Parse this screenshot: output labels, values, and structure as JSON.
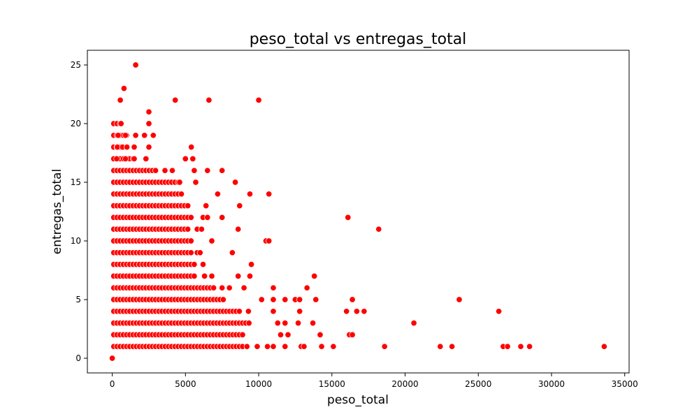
{
  "chart_data": {
    "type": "scatter",
    "title": "peso_total vs entregas_total",
    "xlabel": "peso_total",
    "ylabel": "entregas_total",
    "xlim": [
      -1700,
      35300
    ],
    "ylim": [
      -1.25,
      26.25
    ],
    "xticks": [
      0,
      5000,
      10000,
      15000,
      20000,
      25000,
      30000,
      35000
    ],
    "xtick_labels": [
      "0",
      "5000",
      "10000",
      "15000",
      "20000",
      "25000",
      "30000",
      "35000"
    ],
    "yticks": [
      0,
      5,
      10,
      15,
      20,
      25
    ],
    "ytick_labels": [
      "0",
      "5",
      "10",
      "15",
      "20",
      "25"
    ],
    "grid": false,
    "marker_color": "#ff0000",
    "marker_edge_color": "#ffffff",
    "series": [
      {
        "points": [
          [
            0,
            0
          ],
          [
            1600,
            25
          ],
          [
            800,
            23
          ],
          [
            550,
            22
          ],
          [
            4300,
            22
          ],
          [
            6600,
            22
          ],
          [
            10000,
            22
          ],
          [
            2500,
            21
          ],
          [
            600,
            20
          ],
          [
            2500,
            20
          ],
          [
            400,
            19
          ],
          [
            900,
            19
          ],
          [
            1600,
            19
          ],
          [
            2200,
            19
          ],
          [
            2800,
            19
          ],
          [
            350,
            18
          ],
          [
            700,
            18
          ],
          [
            1000,
            18
          ],
          [
            1500,
            18
          ],
          [
            2500,
            18
          ],
          [
            5400,
            18
          ],
          [
            300,
            17
          ],
          [
            900,
            17
          ],
          [
            1500,
            17
          ],
          [
            2300,
            17
          ],
          [
            5000,
            17
          ],
          [
            5500,
            17
          ],
          [
            3600,
            16
          ],
          [
            4100,
            16
          ],
          [
            5600,
            16
          ],
          [
            6500,
            16
          ],
          [
            7500,
            16
          ],
          [
            4600,
            15
          ],
          [
            5700,
            15
          ],
          [
            8400,
            15
          ],
          [
            7200,
            14
          ],
          [
            9400,
            14
          ],
          [
            10700,
            14
          ],
          [
            6400,
            13
          ],
          [
            8700,
            13
          ],
          [
            6200,
            12
          ],
          [
            6500,
            12
          ],
          [
            7500,
            12
          ],
          [
            16100,
            12
          ],
          [
            5800,
            11
          ],
          [
            6100,
            11
          ],
          [
            8600,
            11
          ],
          [
            18200,
            11
          ],
          [
            6800,
            10
          ],
          [
            10500,
            10
          ],
          [
            10700,
            10
          ],
          [
            5800,
            9
          ],
          [
            6000,
            9
          ],
          [
            8200,
            9
          ],
          [
            5600,
            8
          ],
          [
            6200,
            8
          ],
          [
            9500,
            8
          ],
          [
            6300,
            7
          ],
          [
            6800,
            7
          ],
          [
            8600,
            7
          ],
          [
            9400,
            7
          ],
          [
            13800,
            7
          ],
          [
            7500,
            6
          ],
          [
            8000,
            6
          ],
          [
            9000,
            6
          ],
          [
            11000,
            6
          ],
          [
            13300,
            6
          ],
          [
            10200,
            5
          ],
          [
            11000,
            5
          ],
          [
            11800,
            5
          ],
          [
            12500,
            5
          ],
          [
            12800,
            5
          ],
          [
            13900,
            5
          ],
          [
            16400,
            5
          ],
          [
            23700,
            5
          ],
          [
            9300,
            4
          ],
          [
            11000,
            4
          ],
          [
            12800,
            4
          ],
          [
            16000,
            4
          ],
          [
            16700,
            4
          ],
          [
            17200,
            4
          ],
          [
            26400,
            4
          ],
          [
            11300,
            3
          ],
          [
            11800,
            3
          ],
          [
            12700,
            3
          ],
          [
            13700,
            3
          ],
          [
            20600,
            3
          ],
          [
            11500,
            2
          ],
          [
            12000,
            2
          ],
          [
            14200,
            2
          ],
          [
            16200,
            2
          ],
          [
            16400,
            2
          ],
          [
            9200,
            1
          ],
          [
            9900,
            1
          ],
          [
            10600,
            1
          ],
          [
            11000,
            1
          ],
          [
            11800,
            1
          ],
          [
            12900,
            1
          ],
          [
            13100,
            1
          ],
          [
            14300,
            1
          ],
          [
            15100,
            1
          ],
          [
            18600,
            1
          ],
          [
            22400,
            1
          ],
          [
            23200,
            1
          ],
          [
            26700,
            1
          ],
          [
            27000,
            1
          ],
          [
            27900,
            1
          ],
          [
            28500,
            1
          ],
          [
            33600,
            1
          ]
        ],
        "dense_region": {
          "x_min": 0,
          "x_max_by_y": [
            [
              1,
              9000
            ],
            [
              2,
              8900
            ],
            [
              3,
              9400
            ],
            [
              4,
              8700
            ],
            [
              5,
              7600
            ],
            [
              6,
              7000
            ],
            [
              7,
              5800
            ],
            [
              8,
              5800
            ],
            [
              9,
              5500
            ],
            [
              10,
              5400
            ],
            [
              11,
              5300
            ],
            [
              12,
              5400
            ],
            [
              13,
              5300
            ],
            [
              14,
              4800
            ],
            [
              15,
              4500
            ],
            [
              16,
              3000
            ],
            [
              17,
              1600
            ],
            [
              18,
              1000
            ],
            [
              19,
              1000
            ],
            [
              20,
              700
            ]
          ],
          "x_step": 220
        }
      }
    ]
  }
}
